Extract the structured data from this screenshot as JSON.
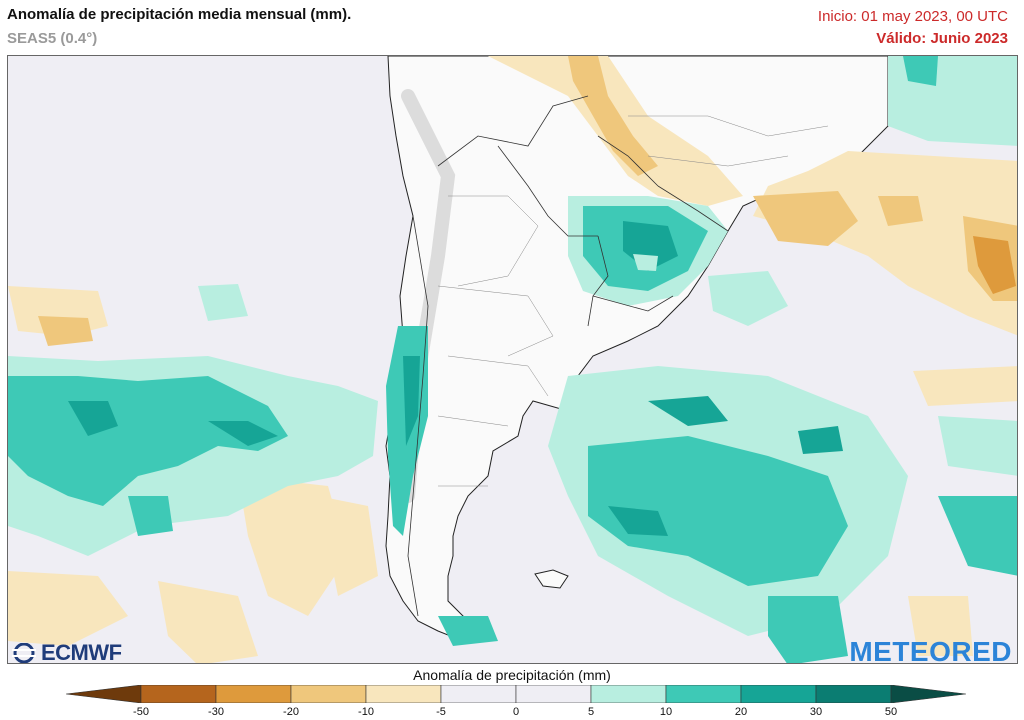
{
  "header": {
    "title": "Anomalía de precipitación media mensual (mm).",
    "subtitle": "SEAS5 (0.4°)",
    "init": "Inicio: 01 may 2023, 00 UTC",
    "valid": "Válido: Junio 2023"
  },
  "logos": {
    "ecmwf": "ECMWF",
    "meteored": "METEORED"
  },
  "legend": {
    "title": "Anomalía de precipitación (mm)",
    "ticks": [
      "-50",
      "-30",
      "-20",
      "-10",
      "-5",
      "0",
      "5",
      "10",
      "20",
      "30",
      "50"
    ],
    "colors": [
      "#6e3a0c",
      "#b5651d",
      "#de9a3c",
      "#efc77c",
      "#f8e6bd",
      "#efeef4",
      "#efeef4",
      "#b8eee0",
      "#3ec9b6",
      "#16a596",
      "#0b7d72",
      "#0a4d45"
    ]
  },
  "colors": {
    "ocean": "#efeef4",
    "land": "#fafafa",
    "wet_light": "#b8eee0",
    "wet_mid": "#3ec9b6",
    "wet_dark": "#16a596",
    "dry_light": "#f8e6bd",
    "dry_mid": "#efc77c",
    "dry_dark": "#de9a3c",
    "title_red": "#cc2a2a"
  }
}
